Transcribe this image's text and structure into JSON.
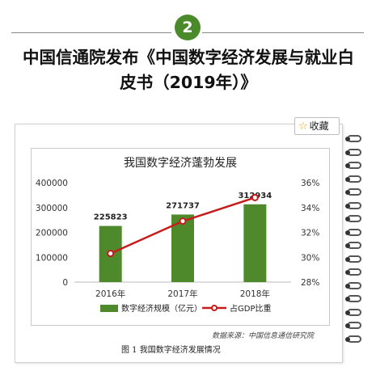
{
  "header": {
    "badge_number": "2",
    "title_line1": "中国信通院发布《中国数字经济发展与就业白",
    "title_line2": "皮书（2019年）》",
    "accent_color": "#4b8a2a"
  },
  "toolbar": {
    "favorite_label": "收藏",
    "favorite_icon": "star-icon"
  },
  "chart_data": {
    "type": "bar",
    "title": "我国数字经济蓬勃发展",
    "categories": [
      "2016年",
      "2017年",
      "2018年"
    ],
    "series": [
      {
        "name": "数字经济规模（亿元）",
        "kind": "bar",
        "axis": "left",
        "color": "#4e8a2c",
        "values": [
          225823,
          271737,
          312934
        ],
        "labels": [
          "225823",
          "271737",
          "312934"
        ]
      },
      {
        "name": "占GDP比重",
        "kind": "line",
        "axis": "right",
        "color": "#c81c1c",
        "values": [
          30.3,
          32.9,
          34.8
        ]
      }
    ],
    "y_left": {
      "ylim": [
        0,
        400000
      ],
      "ticks": [
        "0",
        "100000",
        "200000",
        "300000",
        "400000"
      ],
      "tick_values": [
        0,
        100000,
        200000,
        300000,
        400000
      ]
    },
    "y_right": {
      "ylim": [
        28,
        36
      ],
      "ticks": [
        "28%",
        "30%",
        "32%",
        "34%",
        "36%"
      ],
      "tick_values": [
        28,
        30,
        32,
        34,
        36
      ]
    },
    "legend_position": "bottom",
    "grid": false
  },
  "source_text": "数据来源：中国信息通信研究院",
  "figure_caption": "图 1   我国数字经济发展情况"
}
